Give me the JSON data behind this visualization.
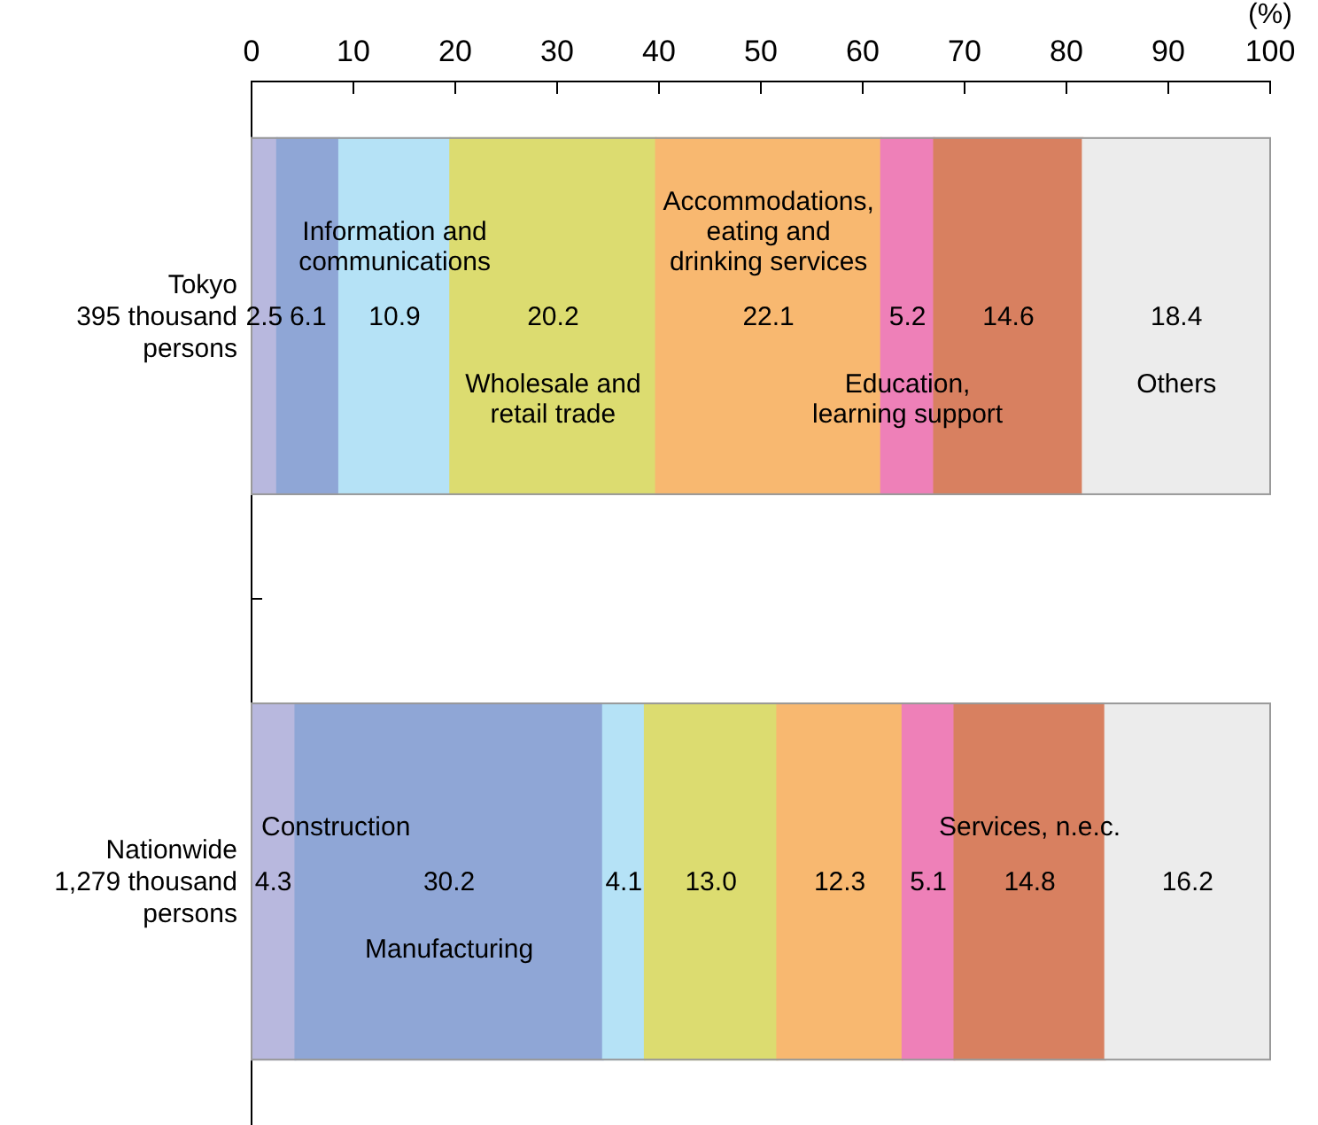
{
  "chart_data": {
    "type": "bar",
    "orientation": "horizontal",
    "stacked": true,
    "xlabel": "(%)",
    "categories": [
      "Tokyo\n395 thousand\npersons",
      "Nationwide\n1,279 thousand\npersons"
    ],
    "xlim": [
      0,
      100
    ],
    "xticks": [
      0,
      10,
      20,
      30,
      40,
      50,
      60,
      70,
      80,
      90,
      100
    ],
    "series": [
      {
        "name": "Construction",
        "color": "#b8b8de",
        "values": [
          2.5,
          4.3
        ],
        "value_labels": [
          "2.5",
          "4.3"
        ]
      },
      {
        "name": "Manufacturing",
        "color": "#8fa6d6",
        "values": [
          6.1,
          30.2
        ],
        "value_labels": [
          "6.1",
          "30.2"
        ]
      },
      {
        "name": "Information and communications",
        "color": "#b5e2f6",
        "values": [
          10.9,
          4.1
        ],
        "value_labels": [
          "10.9",
          "4.1"
        ]
      },
      {
        "name": "Wholesale and retail trade",
        "color": "#dcdc70",
        "values": [
          20.2,
          13.0
        ],
        "value_labels": [
          "20.2",
          "13.0"
        ]
      },
      {
        "name": "Accommodations, eating and drinking services",
        "color": "#f8b870",
        "values": [
          22.1,
          12.3
        ],
        "value_labels": [
          "22.1",
          "12.3"
        ]
      },
      {
        "name": "Education, learning support",
        "color": "#ee80b8",
        "values": [
          5.2,
          5.1
        ],
        "value_labels": [
          "5.2",
          "5.1"
        ]
      },
      {
        "name": "Services, n.e.c.",
        "color": "#d88060",
        "values": [
          14.6,
          14.8
        ],
        "value_labels": [
          "14.6",
          "14.8"
        ]
      },
      {
        "name": "Others",
        "color": "#ececec",
        "values": [
          18.4,
          16.2
        ],
        "value_labels": [
          "18.4",
          "16.2"
        ]
      }
    ]
  }
}
